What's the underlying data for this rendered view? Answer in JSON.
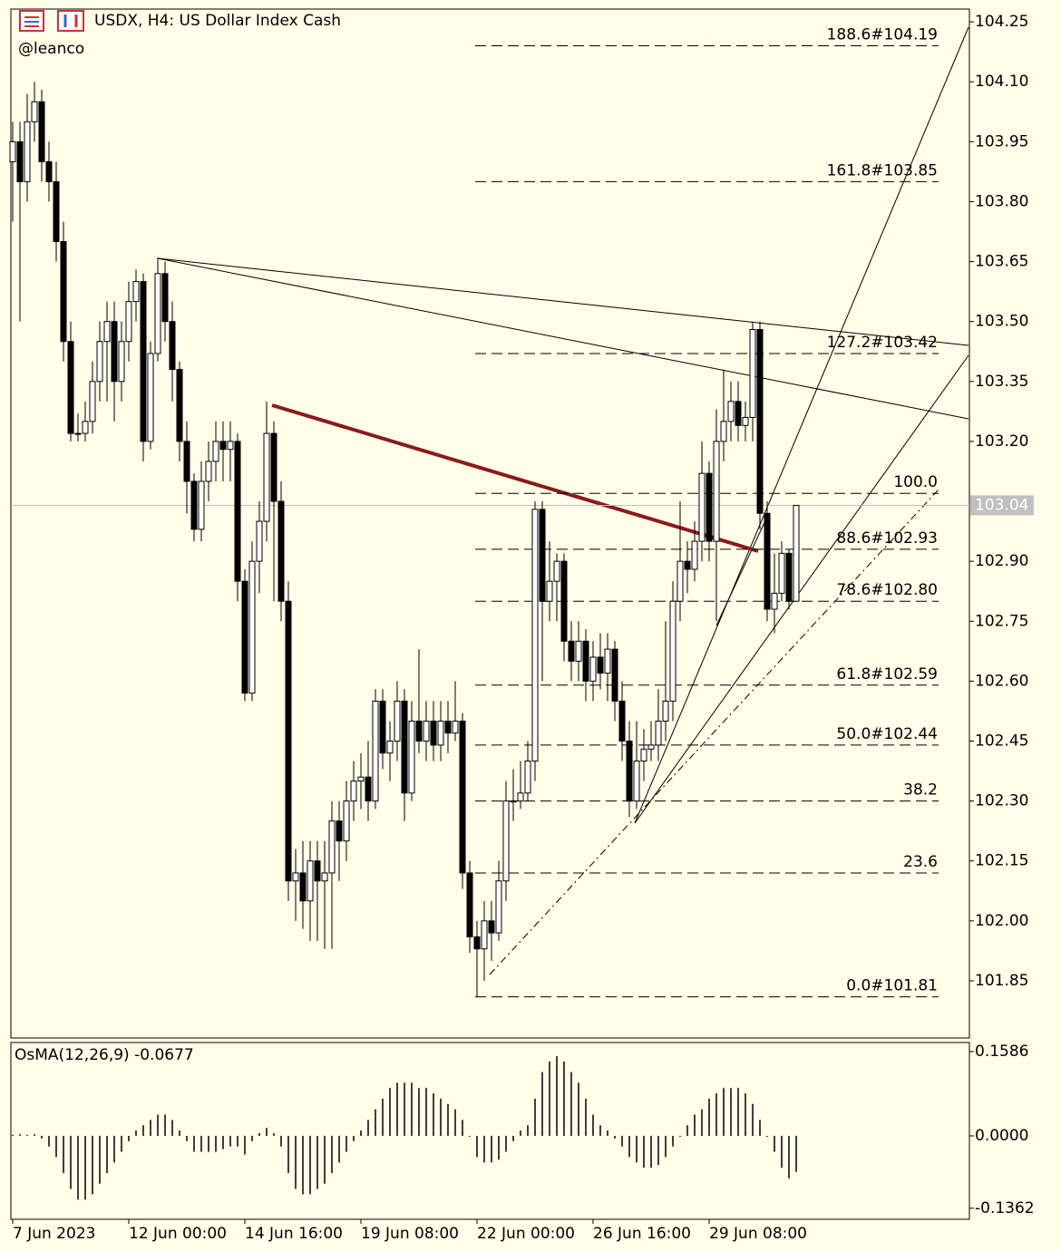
{
  "header": {
    "title": "USDX, H4:  US Dollar Index Cash",
    "author": "@leanco"
  },
  "chart_data": [
    {
      "type": "candlestick",
      "categories": [
        "7 Jun 2023",
        null,
        null,
        null,
        null,
        null,
        null,
        null,
        null,
        null,
        null,
        null,
        null,
        null,
        null,
        null,
        "12 Jun 00:00",
        null,
        null,
        null,
        null,
        null,
        null,
        null,
        null,
        null,
        null,
        null,
        null,
        null,
        null,
        null,
        "14 Jun 16:00",
        null,
        null,
        null,
        null,
        null,
        null,
        null,
        null,
        null,
        null,
        null,
        null,
        null,
        null,
        null,
        "19 Jun 08:00",
        null,
        null,
        null,
        null,
        null,
        null,
        null,
        null,
        null,
        null,
        null,
        null,
        null,
        null,
        null,
        "22 Jun 00:00",
        null,
        null,
        null,
        null,
        null,
        null,
        null,
        null,
        null,
        null,
        null,
        null,
        null,
        null,
        null,
        "26 Jun 16:00",
        null,
        null,
        null,
        null,
        null,
        null,
        null,
        null,
        null,
        null,
        null,
        null,
        null,
        null,
        null,
        "29 Jun 08:00",
        null,
        null,
        null,
        null,
        null,
        null,
        null,
        null,
        null,
        null,
        null,
        null
      ],
      "open": [
        103.9,
        103.95,
        103.85,
        104.0,
        104.05,
        103.9,
        103.85,
        103.7,
        103.45,
        103.22,
        103.22,
        103.25,
        103.35,
        103.45,
        103.5,
        103.35,
        103.45,
        103.55,
        103.6,
        103.2,
        103.42,
        103.62,
        103.5,
        103.38,
        103.2,
        103.1,
        102.98,
        103.1,
        103.15,
        103.2,
        103.18,
        103.2,
        102.85,
        102.57,
        102.9,
        103.0,
        103.22,
        103.05,
        102.8,
        102.1,
        102.12,
        102.05,
        102.15,
        102.1,
        102.12,
        102.25,
        102.2,
        102.3,
        102.35,
        102.36,
        102.3,
        102.55,
        102.42,
        102.45,
        102.55,
        102.32,
        102.5,
        102.45,
        102.5,
        102.44,
        102.5,
        102.47,
        102.5,
        102.12,
        101.96,
        101.93,
        102.0,
        101.97,
        102.1,
        102.3,
        102.3,
        102.32,
        102.4,
        103.03,
        102.8,
        102.85,
        102.9,
        102.7,
        102.65,
        102.7,
        102.6,
        102.66,
        102.62,
        102.68,
        102.55,
        102.45,
        102.3,
        102.4,
        102.43,
        102.44,
        102.5,
        102.55,
        102.8,
        102.9,
        102.88,
        102.95,
        103.12,
        102.95,
        103.2,
        103.25,
        103.3,
        103.24,
        103.26,
        103.48,
        103.02,
        102.78,
        102.82,
        102.92,
        102.8
      ],
      "high": [
        104.0,
        104.0,
        104.07,
        104.1,
        104.08,
        103.95,
        103.9,
        103.75,
        103.5,
        103.27,
        103.3,
        103.4,
        103.5,
        103.55,
        103.55,
        103.5,
        103.6,
        103.63,
        103.62,
        103.45,
        103.66,
        103.65,
        103.55,
        103.4,
        103.25,
        103.12,
        103.15,
        103.2,
        103.25,
        103.25,
        103.25,
        103.22,
        102.88,
        102.95,
        103.05,
        103.3,
        103.25,
        103.1,
        102.85,
        102.18,
        102.2,
        102.2,
        102.2,
        102.2,
        102.3,
        102.3,
        102.35,
        102.4,
        102.42,
        102.45,
        102.58,
        102.58,
        102.5,
        102.6,
        102.58,
        102.55,
        102.68,
        102.55,
        102.55,
        102.55,
        102.55,
        102.6,
        102.52,
        102.15,
        102.0,
        102.05,
        102.05,
        102.15,
        102.35,
        102.38,
        102.4,
        102.45,
        103.05,
        103.05,
        102.95,
        102.92,
        102.92,
        102.75,
        102.75,
        102.73,
        102.7,
        102.72,
        102.72,
        102.7,
        102.6,
        102.5,
        102.5,
        102.48,
        102.5,
        102.58,
        102.75,
        102.85,
        103.05,
        102.95,
        103.0,
        103.2,
        103.15,
        103.28,
        103.38,
        103.35,
        103.35,
        103.3,
        103.5,
        103.5,
        103.05,
        102.92,
        102.95,
        102.93,
        103.04
      ],
      "low": [
        103.75,
        103.5,
        103.8,
        103.95,
        103.85,
        103.8,
        103.65,
        103.4,
        103.2,
        103.2,
        103.2,
        103.22,
        103.3,
        103.3,
        103.25,
        103.3,
        103.4,
        103.5,
        103.15,
        103.18,
        103.4,
        103.45,
        103.3,
        103.15,
        103.02,
        102.95,
        102.95,
        103.05,
        103.1,
        103.1,
        103.1,
        102.8,
        102.55,
        102.55,
        102.82,
        102.95,
        102.8,
        102.75,
        102.05,
        102.0,
        101.98,
        101.95,
        101.95,
        101.93,
        101.93,
        102.1,
        102.15,
        102.25,
        102.28,
        102.25,
        102.28,
        102.38,
        102.35,
        102.4,
        102.25,
        102.3,
        102.42,
        102.4,
        102.4,
        102.4,
        102.42,
        102.45,
        102.08,
        101.92,
        101.81,
        101.85,
        101.9,
        101.95,
        102.05,
        102.25,
        102.28,
        102.3,
        102.35,
        102.6,
        102.75,
        102.75,
        102.65,
        102.6,
        102.6,
        102.55,
        102.55,
        102.58,
        102.55,
        102.5,
        102.4,
        102.26,
        102.28,
        102.35,
        102.4,
        102.4,
        102.45,
        102.5,
        102.75,
        102.82,
        102.85,
        102.9,
        102.9,
        102.75,
        103.15,
        103.2,
        103.2,
        103.2,
        103.2,
        102.98,
        102.75,
        102.72,
        102.8,
        102.78,
        102.8
      ],
      "close": [
        103.95,
        103.85,
        104.0,
        104.05,
        103.9,
        103.85,
        103.7,
        103.45,
        103.22,
        103.22,
        103.25,
        103.35,
        103.45,
        103.5,
        103.35,
        103.45,
        103.55,
        103.6,
        103.2,
        103.42,
        103.62,
        103.5,
        103.38,
        103.2,
        103.1,
        102.98,
        103.1,
        103.15,
        103.2,
        103.18,
        103.2,
        102.85,
        102.57,
        102.9,
        103.0,
        103.22,
        103.05,
        102.8,
        102.1,
        102.12,
        102.05,
        102.15,
        102.1,
        102.12,
        102.25,
        102.2,
        102.3,
        102.35,
        102.36,
        102.3,
        102.55,
        102.42,
        102.45,
        102.55,
        102.32,
        102.5,
        102.45,
        102.5,
        102.44,
        102.5,
        102.47,
        102.5,
        102.12,
        101.96,
        101.93,
        102.0,
        101.97,
        102.1,
        102.3,
        102.3,
        102.32,
        102.4,
        103.03,
        102.8,
        102.85,
        102.9,
        102.7,
        102.65,
        102.7,
        102.6,
        102.66,
        102.62,
        102.68,
        102.55,
        102.45,
        102.3,
        102.4,
        102.43,
        102.44,
        102.5,
        102.55,
        102.8,
        102.9,
        102.88,
        102.95,
        103.12,
        102.95,
        103.2,
        103.25,
        103.3,
        103.24,
        103.26,
        103.48,
        103.02,
        102.78,
        102.82,
        102.92,
        102.8,
        103.04
      ],
      "ylim": [
        101.707,
        104.282
      ],
      "yticks": [
        {
          "value": 104.25,
          "label": "104.25"
        },
        {
          "value": 104.1,
          "label": "104.10"
        },
        {
          "value": 103.95,
          "label": "103.95"
        },
        {
          "value": 103.8,
          "label": "103.80"
        },
        {
          "value": 103.65,
          "label": "103.65"
        },
        {
          "value": 103.5,
          "label": "103.50"
        },
        {
          "value": 103.35,
          "label": "103.35"
        },
        {
          "value": 103.2,
          "label": "103.20"
        },
        {
          "value": 102.9,
          "label": "102.90"
        },
        {
          "value": 102.75,
          "label": "102.75"
        },
        {
          "value": 102.6,
          "label": "102.60"
        },
        {
          "value": 102.45,
          "label": "102.45"
        },
        {
          "value": 102.3,
          "label": "102.30"
        },
        {
          "value": 102.15,
          "label": "102.15"
        },
        {
          "value": 102.0,
          "label": "102.00"
        },
        {
          "value": 101.85,
          "label": "101.85"
        }
      ],
      "last_price": 103.04,
      "fib_levels": [
        {
          "value": 104.19,
          "label": "188.6#104.19"
        },
        {
          "value": 103.85,
          "label": "161.8#103.85"
        },
        {
          "value": 103.42,
          "label": "127.2#103.42"
        },
        {
          "value": 103.07,
          "label": "100.0"
        },
        {
          "value": 102.93,
          "label": "88.6#102.93"
        },
        {
          "value": 102.8,
          "label": "78.6#102.80"
        },
        {
          "value": 102.59,
          "label": "61.8#102.59"
        },
        {
          "value": 102.44,
          "label": "50.0#102.44"
        },
        {
          "value": 102.3,
          "label": "38.2"
        },
        {
          "value": 102.12,
          "label": "23.6"
        },
        {
          "value": 101.81,
          "label": "0.0#101.81"
        }
      ],
      "color": "#000000"
    },
    {
      "type": "bar",
      "title": "OsMA(12,26,9) -0.0677",
      "values": [
        0.002,
        0.003,
        0.002,
        0.003,
        -0.005,
        -0.02,
        -0.04,
        -0.07,
        -0.1,
        -0.12,
        -0.12,
        -0.11,
        -0.09,
        -0.07,
        -0.05,
        -0.03,
        -0.01,
        0.01,
        0.02,
        0.03,
        0.04,
        0.04,
        0.03,
        0.01,
        -0.01,
        -0.03,
        -0.03,
        -0.03,
        -0.03,
        -0.025,
        -0.02,
        -0.02,
        -0.035,
        -0.01,
        0.005,
        0.015,
        0.005,
        -0.02,
        -0.07,
        -0.1,
        -0.11,
        -0.11,
        -0.1,
        -0.09,
        -0.07,
        -0.05,
        -0.03,
        -0.01,
        0.01,
        0.03,
        0.05,
        0.07,
        0.09,
        0.1,
        0.1,
        0.1,
        0.09,
        0.09,
        0.08,
        0.07,
        0.06,
        0.05,
        0.03,
        0.0,
        -0.04,
        -0.05,
        -0.05,
        -0.045,
        -0.03,
        -0.01,
        0.01,
        0.02,
        0.07,
        0.12,
        0.14,
        0.15,
        0.14,
        0.12,
        0.1,
        0.07,
        0.04,
        0.02,
        0.01,
        -0.005,
        -0.02,
        -0.04,
        -0.05,
        -0.06,
        -0.06,
        -0.055,
        -0.04,
        -0.02,
        0.0,
        0.02,
        0.04,
        0.05,
        0.07,
        0.08,
        0.09,
        0.09,
        0.09,
        0.08,
        0.06,
        0.03,
        0.0,
        -0.03,
        -0.06,
        -0.08,
        -0.0677
      ],
      "ylim": [
        -0.157,
        0.1757
      ],
      "yticks": [
        0.1586,
        {
          "value": 0,
          "label": "0.0000"
        },
        -0.1362
      ],
      "color": "#000000"
    }
  ]
}
